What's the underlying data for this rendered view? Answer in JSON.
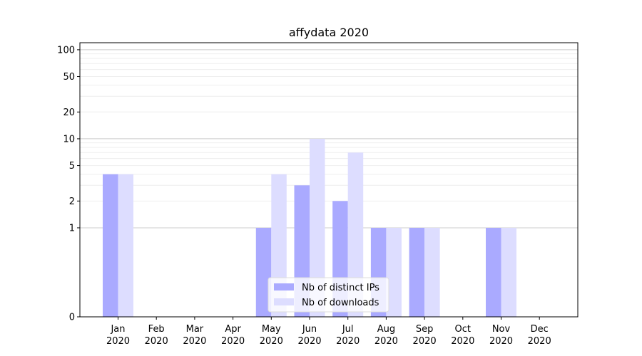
{
  "chart_data": {
    "type": "bar",
    "title": "affydata 2020",
    "xlabel": "",
    "ylabel": "",
    "y_scale": "symlog",
    "ylim": [
      0,
      120
    ],
    "y_ticks": [
      0,
      1,
      2,
      5,
      10,
      20,
      50,
      100
    ],
    "grid": true,
    "legend_position": "bottom-center",
    "categories": [
      [
        "Jan",
        "2020"
      ],
      [
        "Feb",
        "2020"
      ],
      [
        "Mar",
        "2020"
      ],
      [
        "Apr",
        "2020"
      ],
      [
        "May",
        "2020"
      ],
      [
        "Jun",
        "2020"
      ],
      [
        "Jul",
        "2020"
      ],
      [
        "Aug",
        "2020"
      ],
      [
        "Sep",
        "2020"
      ],
      [
        "Oct",
        "2020"
      ],
      [
        "Nov",
        "2020"
      ],
      [
        "Dec",
        "2020"
      ]
    ],
    "series": [
      {
        "name": "Nb of distinct IPs",
        "color": "#aaaaff",
        "values": [
          4,
          0,
          0,
          0,
          1,
          3,
          2,
          1,
          1,
          0,
          1,
          0
        ]
      },
      {
        "name": "Nb of downloads",
        "color": "#ddddff",
        "values": [
          4,
          0,
          0,
          0,
          4,
          10,
          7,
          1,
          1,
          0,
          1,
          0
        ]
      }
    ]
  }
}
